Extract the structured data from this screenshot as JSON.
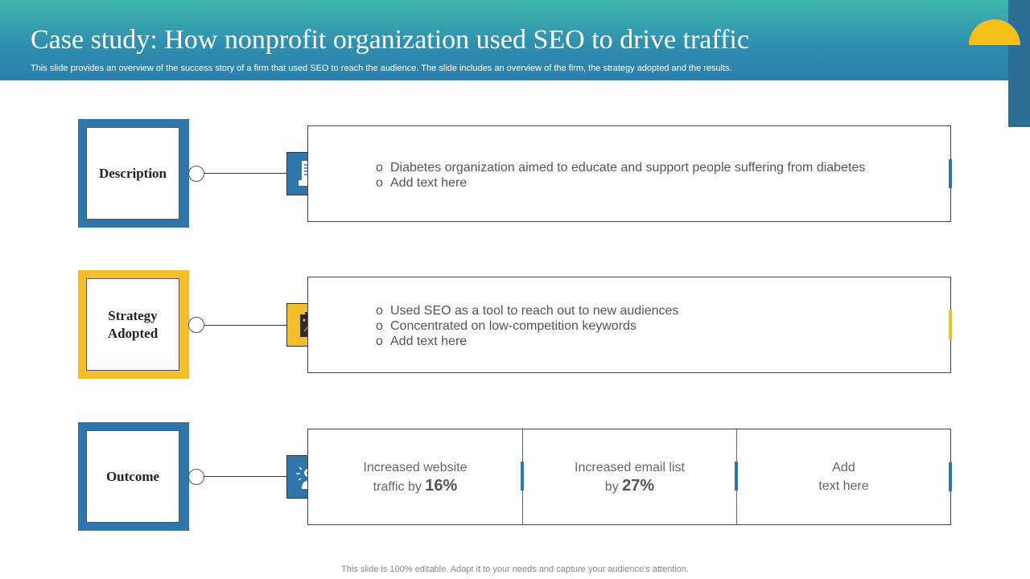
{
  "header": {
    "title": "Case study: How nonprofit organization used SEO to drive traffic",
    "subtitle": "This slide provides an overview of the success story of a firm that used SEO to reach the audience. The slide includes an overview of the firm, the strategy adopted and the results."
  },
  "rows": [
    {
      "label": "Description",
      "color": "#2e76ab",
      "icon": "document-icon",
      "bullets": [
        "Diabetes organization aimed to educate and support people suffering from diabetes",
        "Add text here"
      ]
    },
    {
      "label_line1": "Strategy",
      "label_line2": "Adopted",
      "color": "#f4bd2b",
      "icon": "clipboard-strategy-icon",
      "bullets": [
        "Used SEO as a tool to reach out to new audiences",
        "Concentrated on low-competition keywords",
        "Add text here"
      ]
    },
    {
      "label": "Outcome",
      "color": "#2e76ab",
      "icon": "success-person-icon",
      "cells": [
        {
          "line1": "Increased website",
          "line2": "traffic by",
          "value": "16%"
        },
        {
          "line1": "Increased email list",
          "line2": "by",
          "value": "27%"
        },
        {
          "line1": "Add",
          "line2": "text here"
        }
      ]
    }
  ],
  "footer": "This slide is 100% editable. Adapt it to your needs and capture your audience's attention."
}
